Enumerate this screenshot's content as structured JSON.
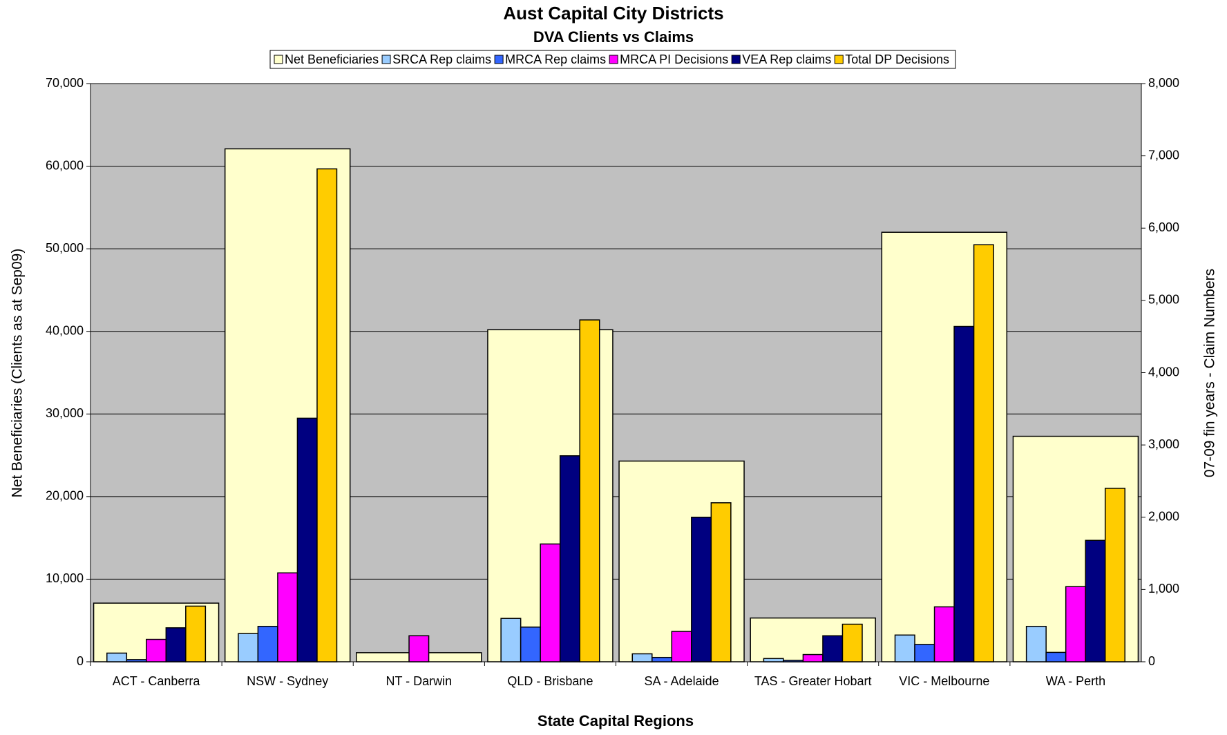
{
  "chart_data": {
    "type": "bar",
    "title": "Aust Capital City Districts",
    "subtitle": "DVA Clients vs Claims",
    "x_label": "State Capital Regions",
    "y_label": "Net Beneficiaries (Clients as at Sep09)",
    "y2_label": "07-09 fin years - Claim Numbers",
    "categories": [
      "ACT - Canberra",
      "NSW - Sydney",
      "NT - Darwin",
      "QLD - Brisbane",
      "SA - Adelaide",
      "TAS - Greater Hobart",
      "VIC - Melbourne",
      "WA - Perth"
    ],
    "series": [
      {
        "name": "Net Beneficiaries",
        "color": "#ffffcc",
        "values": [
          7100,
          62100,
          1100,
          40200,
          24300,
          5300,
          52000,
          27300
        ]
      },
      {
        "name": "SRCA Rep claims",
        "color": "#99ccff",
        "axis": "y2",
        "values": [
          120,
          390,
          0,
          600,
          110,
          45,
          370,
          490
        ]
      },
      {
        "name": "MRCA Rep claims",
        "color": "#3366ff",
        "axis": "y2",
        "values": [
          30,
          490,
          0,
          480,
          60,
          20,
          240,
          130
        ]
      },
      {
        "name": "MRCA PI Decisions",
        "color": "#ff00ff",
        "axis": "y2",
        "values": [
          310,
          1230,
          360,
          1630,
          420,
          100,
          760,
          1040
        ]
      },
      {
        "name": "VEA Rep claims",
        "color": "#000080",
        "axis": "y2",
        "values": [
          470,
          3370,
          0,
          2850,
          2000,
          360,
          4640,
          1680
        ]
      },
      {
        "name": "Total DP Decisions",
        "color": "#ffcc00",
        "axis": "y2",
        "values": [
          770,
          6820,
          0,
          4730,
          2200,
          520,
          5770,
          2400
        ]
      }
    ],
    "ylim": [
      0,
      70000
    ],
    "yticks": [
      0,
      {
        "value": 10000,
        "label": "10,000"
      },
      {
        "value": 20000,
        "label": "20,000"
      },
      {
        "value": 30000,
        "label": "30,000"
      },
      {
        "value": 40000,
        "label": "40,000"
      },
      {
        "value": 50000,
        "label": "50,000"
      },
      {
        "value": 60000,
        "label": "60,000"
      },
      {
        "value": 70000,
        "label": "70,000"
      }
    ],
    "y2lim": [
      0,
      8000
    ],
    "y2ticks": [
      0,
      {
        "value": 1000,
        "label": "1,000"
      },
      {
        "value": 2000,
        "label": "2,000"
      },
      {
        "value": 3000,
        "label": "3,000"
      },
      {
        "value": 4000,
        "label": "4,000"
      },
      {
        "value": 5000,
        "label": "5,000"
      },
      {
        "value": 6000,
        "label": "6,000"
      },
      {
        "value": 7000,
        "label": "7,000"
      },
      {
        "value": 8000,
        "label": "8,000"
      }
    ],
    "grid": true,
    "legend": "top",
    "plot_background": "#c0c0c0"
  }
}
